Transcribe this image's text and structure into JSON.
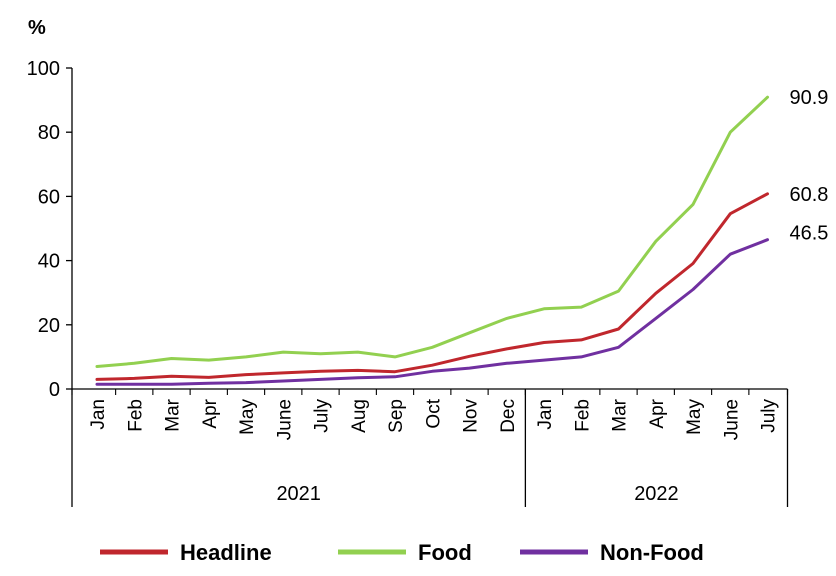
{
  "chart_data": {
    "type": "line",
    "unit_label": "%",
    "ylim": [
      0,
      100
    ],
    "y_ticks": [
      0,
      20,
      40,
      60,
      80,
      100
    ],
    "categories": [
      "Jan",
      "Feb",
      "Mar",
      "Apr",
      "May",
      "June",
      "July",
      "Aug",
      "Sep",
      "Oct",
      "Nov",
      "Dec",
      "Jan",
      "Feb",
      "Mar",
      "Apr",
      "May",
      "June",
      "July"
    ],
    "year_groups": [
      {
        "label": "2021",
        "count": 12
      },
      {
        "label": "2022",
        "count": 7
      }
    ],
    "series": [
      {
        "name": "Headline",
        "color": "#c0272d",
        "values": [
          3.0,
          3.3,
          4.0,
          3.6,
          4.5,
          5.0,
          5.5,
          5.8,
          5.4,
          7.4,
          10.2,
          12.5,
          14.5,
          15.3,
          18.7,
          29.8,
          39.1,
          54.6,
          60.8
        ],
        "end_label": "60.8"
      },
      {
        "name": "Food",
        "color": "#92d050",
        "values": [
          7.0,
          8.0,
          9.5,
          9.0,
          10.0,
          11.5,
          11.0,
          11.5,
          10.0,
          13.0,
          17.5,
          22.0,
          25.0,
          25.5,
          30.5,
          46.0,
          57.5,
          80.0,
          90.9
        ],
        "end_label": "90.9"
      },
      {
        "name": "Non-Food",
        "color": "#7030a0",
        "values": [
          1.5,
          1.5,
          1.5,
          1.8,
          2.0,
          2.5,
          3.0,
          3.5,
          3.8,
          5.5,
          6.5,
          8.0,
          9.0,
          10.0,
          13.0,
          22.0,
          31.0,
          42.0,
          46.5
        ],
        "end_label": "46.5"
      }
    ],
    "legend_position": "bottom",
    "grid": false
  }
}
